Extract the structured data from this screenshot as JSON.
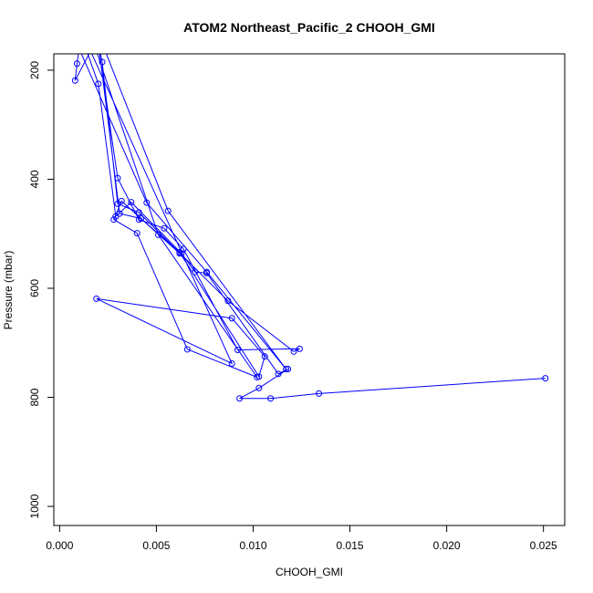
{
  "chart_data": {
    "type": "line",
    "title": "ATOM2 Northeast_Pacific_2 CHOOH_GMI",
    "xlabel": "CHOOH_GMI",
    "ylabel": "Pressure (mbar)",
    "xlim": [
      -0.0003,
      0.0261
    ],
    "ylim": [
      1035,
      170
    ],
    "y_reversed": true,
    "grid": false,
    "x_ticks": [
      0.0,
      0.005,
      0.01,
      0.015,
      0.02,
      0.025
    ],
    "x_tick_labels": [
      "0.000",
      "0.005",
      "0.010",
      "0.015",
      "0.020",
      "0.025"
    ],
    "y_ticks": [
      200,
      400,
      600,
      800,
      1000
    ],
    "y_tick_labels": [
      "200",
      "400",
      "600",
      "800",
      "1000"
    ],
    "series_color": "#0000ff",
    "series": [
      {
        "x": [
          0.0251,
          0.0134,
          0.0109,
          0.0093,
          0.0103,
          0.0118,
          0.0113,
          0.0076,
          0.007,
          0.0063,
          0.0037,
          0.0029,
          0.002,
          0.0014,
          0.002,
          0.003,
          0.0041,
          0.0054,
          0.0064,
          0.0092,
          0.0124,
          0.0121,
          0.0087,
          0.0041,
          0.003,
          0.0022,
          0.002,
          0.0031,
          0.0042,
          0.0062,
          0.0103,
          0.0106,
          0.0089,
          0.0019,
          0.0089,
          0.0016,
          0.0008,
          0.0009,
          0.001,
          0.0045,
          0.0076,
          0.0117,
          0.0056,
          0.0023,
          0.0019,
          0.0051,
          0.0102,
          0.0066,
          0.004,
          0.0028,
          0.0032,
          0.0062
        ],
        "y": [
          765,
          793,
          802,
          802,
          783,
          748,
          757,
          572,
          570,
          536,
          442,
          468,
          225,
          165,
          155,
          398,
          474,
          490,
          528,
          713,
          711,
          716,
          623,
          461,
          445,
          185,
          150,
          463,
          472,
          534,
          762,
          725,
          655,
          619,
          738,
          165,
          219,
          188,
          160,
          443,
          570,
          748,
          458,
          160,
          165,
          502,
          763,
          712,
          499,
          474,
          440,
          536
        ]
      }
    ]
  }
}
